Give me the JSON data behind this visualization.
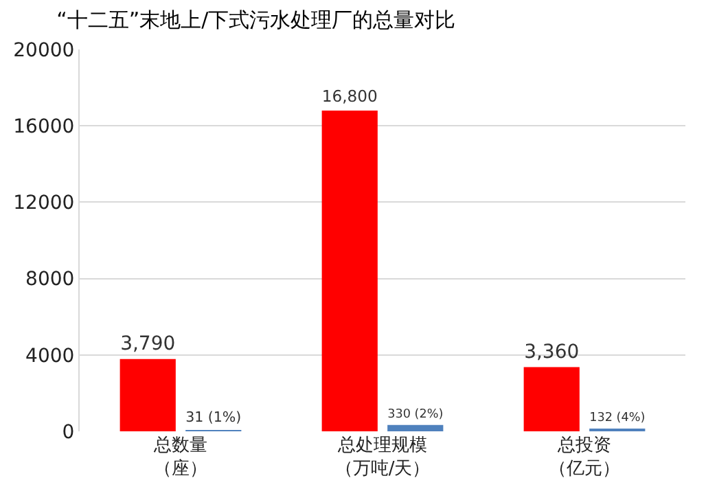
{
  "chart_data": {
    "type": "bar",
    "title": "“十二五”末地上/下式污水处理厂的总量对比",
    "categories": [
      "总数量（座）",
      "总处理规模（万吨/天）",
      "总投资（亿元）"
    ],
    "series": [
      {
        "color": "#ff0000",
        "values": [
          3790,
          16800,
          3360
        ],
        "value_labels": [
          "3,790",
          "16,800",
          "3,360"
        ]
      },
      {
        "color": "#4f81bd",
        "values": [
          31,
          330,
          132
        ],
        "value_labels": [
          "31 (1%)",
          "330 (2%)",
          "132 (4%)"
        ]
      }
    ],
    "ylim": [
      0,
      20000
    ],
    "yticks": [
      0,
      4000,
      8000,
      12000,
      16000,
      20000
    ],
    "grid": "y"
  }
}
